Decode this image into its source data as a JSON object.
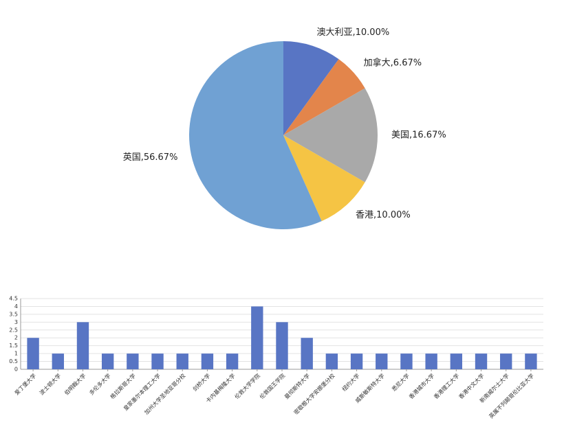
{
  "chart_data": [
    {
      "type": "pie",
      "values": [
        10,
        6.67,
        16.67,
        10,
        56.67
      ],
      "value_labels": [
        "澳大利亚,10.00%",
        "加拿大,6.67%",
        "美国,16.67%",
        "香港,10.00%",
        "英国,56.67%"
      ],
      "colors": [
        "#5875c4",
        "#e3854b",
        "#a9a9a9",
        "#f5c444",
        "#70a1d3"
      ]
    },
    {
      "type": "bar",
      "categories": [
        "爱丁堡大学",
        "波士顿大学",
        "伯明翰大学",
        "多伦多大学",
        "格拉斯哥大学",
        "皇家墨尔本理工大学",
        "加州大学圣地亚哥分校",
        "剑桥大学",
        "卡内基梅隆大学",
        "伦敦大学学院",
        "伦敦国王学院",
        "曼彻斯特大学",
        "密歇根大学安娜堡分校",
        "纽约大学",
        "威斯敏斯特大学",
        "悉尼大学",
        "香港城市大学",
        "香港理工大学",
        "香港中文大学",
        "新南威尔士大学",
        "英属不列颠哥伦比亚大学"
      ],
      "values": [
        2,
        1,
        3,
        1,
        1,
        1,
        1,
        1,
        1,
        4,
        3,
        2,
        1,
        1,
        1,
        1,
        1,
        1,
        1,
        1,
        1
      ],
      "color": "#5875c4",
      "ylim": [
        0,
        4.5
      ],
      "yticks": [
        0,
        0.5,
        1,
        1.5,
        2,
        2.5,
        3,
        3.5,
        4,
        4.5
      ],
      "grid": true
    }
  ]
}
